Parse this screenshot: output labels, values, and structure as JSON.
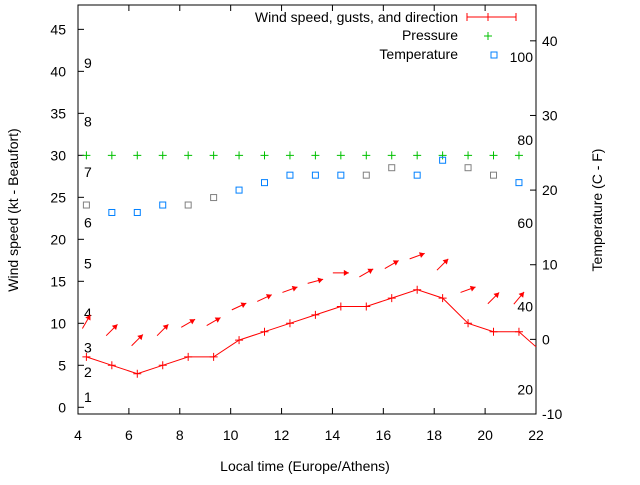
{
  "chart_data": {
    "type": "line",
    "title": "",
    "xlabel": "Local time (Europe/Athens)",
    "ylabel": "Wind speed (kt - Beaufort)",
    "y2label": "Temperature (C - F)",
    "xlim": [
      4,
      22
    ],
    "ylim": [
      -0.8,
      47.9
    ],
    "y2lim": [
      -10,
      44.8
    ],
    "xticks": [
      "4",
      "6",
      "8",
      "10",
      "12",
      "14",
      "16",
      "18",
      "20",
      "22"
    ],
    "yticks": [
      "0",
      "5",
      "10",
      "15",
      "20",
      "25",
      "30",
      "35",
      "40",
      "45"
    ],
    "y2ticks": [
      "-10",
      "0",
      "10",
      "20",
      "30",
      "40"
    ],
    "beaufort_labels": [
      {
        "label": "1",
        "kt": 1.2
      },
      {
        "label": "2",
        "kt": 4.2
      },
      {
        "label": "3",
        "kt": 7.1
      },
      {
        "label": "4",
        "kt": 11.2
      },
      {
        "label": "5",
        "kt": 17.1
      },
      {
        "label": "6",
        "kt": 22
      },
      {
        "label": "7",
        "kt": 28
      },
      {
        "label": "8",
        "kt": 34
      },
      {
        "label": "9",
        "kt": 41
      }
    ],
    "fahrenheit_labels": [
      {
        "label": "20",
        "c": -6.7
      },
      {
        "label": "40",
        "c": 4.4
      },
      {
        "label": "60",
        "c": 15.6
      },
      {
        "label": "80",
        "c": 26.7
      },
      {
        "label": "100",
        "c": 37.8
      }
    ],
    "legend": {
      "position": "top-right",
      "entries": [
        "Wind speed, gusts, and direction",
        "Pressure",
        "Temperature"
      ]
    },
    "x": [
      4.33,
      5.33,
      6.33,
      7.33,
      8.33,
      9.33,
      10.33,
      11.33,
      12.33,
      13.33,
      14.33,
      15.33,
      16.33,
      17.33,
      18.33,
      19.33,
      20.33,
      21.33
    ],
    "series": [
      {
        "name": "Wind speed",
        "axis": "y",
        "color": "#ff0000",
        "values": [
          6,
          5,
          4,
          5,
          6,
          6,
          8,
          9,
          10,
          11,
          12,
          12,
          13,
          14,
          13,
          10,
          9,
          9
        ],
        "tail": {
          "x": 22,
          "value": 7.2
        }
      },
      {
        "name": "Gusts/direction",
        "axis": "y",
        "color": "#ff0000",
        "values": [
          10.2,
          9.2,
          8,
          9.2,
          10,
          10.2,
          12,
          13,
          14,
          15,
          16,
          16,
          17,
          18,
          17,
          14,
          13,
          13
        ],
        "direction_deg": [
          60,
          45,
          45,
          45,
          30,
          30,
          25,
          25,
          20,
          15,
          0,
          30,
          30,
          20,
          45,
          20,
          45,
          50
        ]
      },
      {
        "name": "Pressure",
        "axis": "y",
        "color": "#00c000",
        "values": [
          30,
          30,
          30,
          30,
          30,
          30,
          30,
          30,
          30,
          30,
          30,
          30,
          30,
          30,
          30,
          30,
          30,
          30
        ]
      },
      {
        "name": "Temperature",
        "axis": "y2",
        "color": "#0080ff",
        "values": [
          18,
          17,
          17,
          18,
          18,
          19,
          20,
          21,
          22,
          22,
          22,
          22,
          23,
          22,
          24,
          23,
          22,
          21
        ],
        "point_colors": [
          "#808080",
          "#0080ff",
          "#0080ff",
          "#0080ff",
          "#808080",
          "#808080",
          "#0080ff",
          "#0080ff",
          "#0080ff",
          "#0080ff",
          "#0080ff",
          "#808080",
          "#808080",
          "#0080ff",
          "#0080ff",
          "#808080",
          "#808080",
          "#0080ff"
        ]
      }
    ]
  }
}
